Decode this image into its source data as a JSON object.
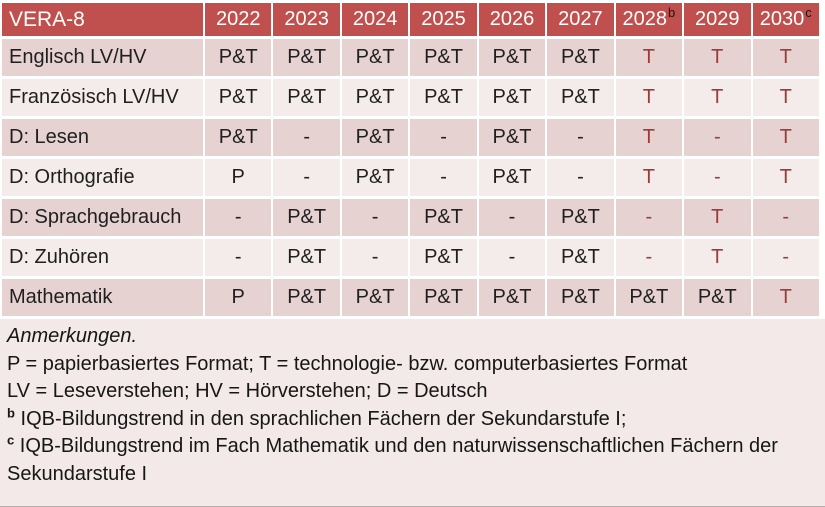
{
  "table": {
    "corner_label": "VERA-8",
    "years": [
      {
        "text": "2022",
        "sup": ""
      },
      {
        "text": "2023",
        "sup": ""
      },
      {
        "text": "2024",
        "sup": ""
      },
      {
        "text": "2025",
        "sup": ""
      },
      {
        "text": "2026",
        "sup": ""
      },
      {
        "text": "2027",
        "sup": ""
      },
      {
        "text": "2028",
        "sup": "b"
      },
      {
        "text": "2029",
        "sup": ""
      },
      {
        "text": "2030",
        "sup": "c"
      }
    ],
    "rows": [
      {
        "label": "Englisch LV/HV",
        "cells": [
          {
            "v": "P&T",
            "red": false
          },
          {
            "v": "P&T",
            "red": false
          },
          {
            "v": "P&T",
            "red": false
          },
          {
            "v": "P&T",
            "red": false
          },
          {
            "v": "P&T",
            "red": false
          },
          {
            "v": "P&T",
            "red": false
          },
          {
            "v": "T",
            "red": true
          },
          {
            "v": "T",
            "red": true
          },
          {
            "v": "T",
            "red": true
          }
        ]
      },
      {
        "label": "Französisch LV/HV",
        "cells": [
          {
            "v": "P&T",
            "red": false
          },
          {
            "v": "P&T",
            "red": false
          },
          {
            "v": "P&T",
            "red": false
          },
          {
            "v": "P&T",
            "red": false
          },
          {
            "v": "P&T",
            "red": false
          },
          {
            "v": "P&T",
            "red": false
          },
          {
            "v": "T",
            "red": true
          },
          {
            "v": "T",
            "red": true
          },
          {
            "v": "T",
            "red": true
          }
        ]
      },
      {
        "label": "D: Lesen",
        "cells": [
          {
            "v": "P&T",
            "red": false
          },
          {
            "v": "-",
            "red": false
          },
          {
            "v": "P&T",
            "red": false
          },
          {
            "v": "-",
            "red": false
          },
          {
            "v": "P&T",
            "red": false
          },
          {
            "v": "-",
            "red": false
          },
          {
            "v": "T",
            "red": true
          },
          {
            "v": "-",
            "red": true
          },
          {
            "v": "T",
            "red": true
          }
        ]
      },
      {
        "label": "D: Orthografie",
        "cells": [
          {
            "v": "P",
            "red": false
          },
          {
            "v": "-",
            "red": false
          },
          {
            "v": "P&T",
            "red": false
          },
          {
            "v": "-",
            "red": false
          },
          {
            "v": "P&T",
            "red": false
          },
          {
            "v": "-",
            "red": false
          },
          {
            "v": "T",
            "red": true
          },
          {
            "v": "-",
            "red": true
          },
          {
            "v": "T",
            "red": true
          }
        ]
      },
      {
        "label": "D: Sprachgebrauch",
        "cells": [
          {
            "v": "-",
            "red": false
          },
          {
            "v": "P&T",
            "red": false
          },
          {
            "v": "-",
            "red": false
          },
          {
            "v": "P&T",
            "red": false
          },
          {
            "v": "-",
            "red": false
          },
          {
            "v": "P&T",
            "red": false
          },
          {
            "v": "-",
            "red": true
          },
          {
            "v": "T",
            "red": true
          },
          {
            "v": "-",
            "red": true
          }
        ]
      },
      {
        "label": "D: Zuhören",
        "cells": [
          {
            "v": "-",
            "red": false
          },
          {
            "v": "P&T",
            "red": false
          },
          {
            "v": "-",
            "red": false
          },
          {
            "v": "P&T",
            "red": false
          },
          {
            "v": "-",
            "red": false
          },
          {
            "v": "P&T",
            "red": false
          },
          {
            "v": "-",
            "red": true
          },
          {
            "v": "T",
            "red": true
          },
          {
            "v": "-",
            "red": true
          }
        ]
      },
      {
        "label": "Mathematik",
        "cells": [
          {
            "v": "P",
            "red": false
          },
          {
            "v": "P&T",
            "red": false
          },
          {
            "v": "P&T",
            "red": false
          },
          {
            "v": "P&T",
            "red": false
          },
          {
            "v": "P&T",
            "red": false
          },
          {
            "v": "P&T",
            "red": false
          },
          {
            "v": "P&T",
            "red": false
          },
          {
            "v": "P&T",
            "red": false
          },
          {
            "v": "T",
            "red": true
          }
        ]
      }
    ]
  },
  "notes": {
    "heading": "Anmerkungen.",
    "lines": [
      {
        "sup": "",
        "text": "P = papierbasiertes Format; T = technologie- bzw. computerbasiertes Format"
      },
      {
        "sup": "",
        "text": "LV = Leseverstehen; HV = Hörverstehen; D = Deutsch"
      },
      {
        "sup": "b",
        "text": "IQB-Bildungstrend in den sprachlichen Fächern der Sekundarstufe I;"
      },
      {
        "sup": "c",
        "text": "IQB-Bildungstrend im Fach Mathematik und den naturwissenschaftlichen Fächern der Sekundarstufe I"
      }
    ]
  },
  "colors": {
    "header_bg": "#C0504D",
    "header_text": "#FFFFFF",
    "row_dark_bg": "#E6D2D1",
    "row_light_bg": "#F4ECEB",
    "notes_bg": "#F2E9E8",
    "body_text": "#1F1F1F",
    "highlight_text": "#9E3A38"
  }
}
